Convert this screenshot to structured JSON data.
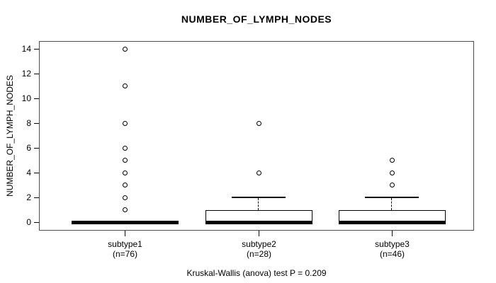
{
  "title": "NUMBER_OF_LYMPH_NODES",
  "caption": "Kruskal-Wallis (anova) test P = 0.209",
  "chart_data": {
    "type": "boxplot",
    "title": "NUMBER_OF_LYMPH_NODES",
    "ylabel": "NUMBER_OF_LYMPH_NODES",
    "xlabel": "",
    "ylim": [
      0,
      14
    ],
    "yticks": [
      0,
      2,
      4,
      6,
      8,
      10,
      12,
      14
    ],
    "grid": false,
    "caption": "Kruskal-Wallis (anova) test P = 0.209",
    "groups": [
      {
        "label": "subtype1",
        "sublabel": "(n=76)",
        "n": 76,
        "median": 0,
        "q1": 0,
        "q3": 0,
        "whisker_low": 0,
        "whisker_high": 0,
        "outliers": [
          1,
          2,
          3,
          4,
          5,
          6,
          8,
          11,
          14
        ]
      },
      {
        "label": "subtype2",
        "sublabel": "(n=28)",
        "n": 28,
        "median": 0,
        "q1": 0,
        "q3": 1,
        "whisker_low": 0,
        "whisker_high": 2,
        "outliers": [
          4,
          8
        ]
      },
      {
        "label": "subtype3",
        "sublabel": "(n=46)",
        "n": 46,
        "median": 0,
        "q1": 0,
        "q3": 1,
        "whisker_low": 0,
        "whisker_high": 2,
        "outliers": [
          3,
          4,
          5
        ]
      }
    ]
  }
}
